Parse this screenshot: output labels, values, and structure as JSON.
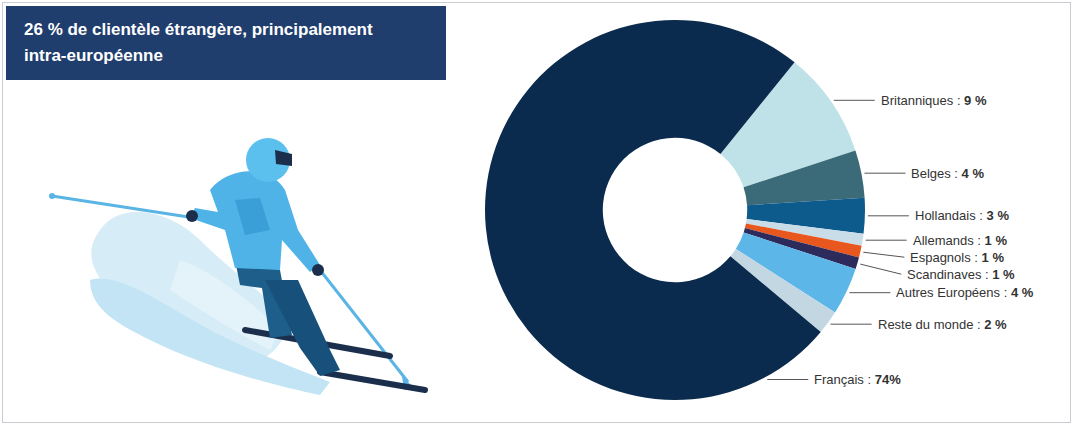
{
  "chart_data": {
    "type": "donut",
    "title": "26 % de clientèle étrangère, principalement intra-européenne",
    "categories": [
      "Britanniques :",
      "Belges :",
      "Hollandais :",
      "Allemands :",
      "Espagnols :",
      "Scandinaves :",
      "Autres Européens :",
      "Reste du monde :",
      "Français :"
    ],
    "values": [
      9,
      4,
      3,
      1,
      1,
      1,
      4,
      2,
      74
    ],
    "value_labels": [
      "9 %",
      "4 %",
      "3 %",
      "1 %",
      "1 %",
      "1 %",
      "4 %",
      "2 %",
      "74%"
    ],
    "colors": [
      "#bfe2e8",
      "#3b6b78",
      "#0d5a8c",
      "#c9dde8",
      "#e8571e",
      "#2c2b5c",
      "#5cb6e8",
      "#c3d7e2",
      "#0b2b4e"
    ],
    "data_labels": true
  }
}
